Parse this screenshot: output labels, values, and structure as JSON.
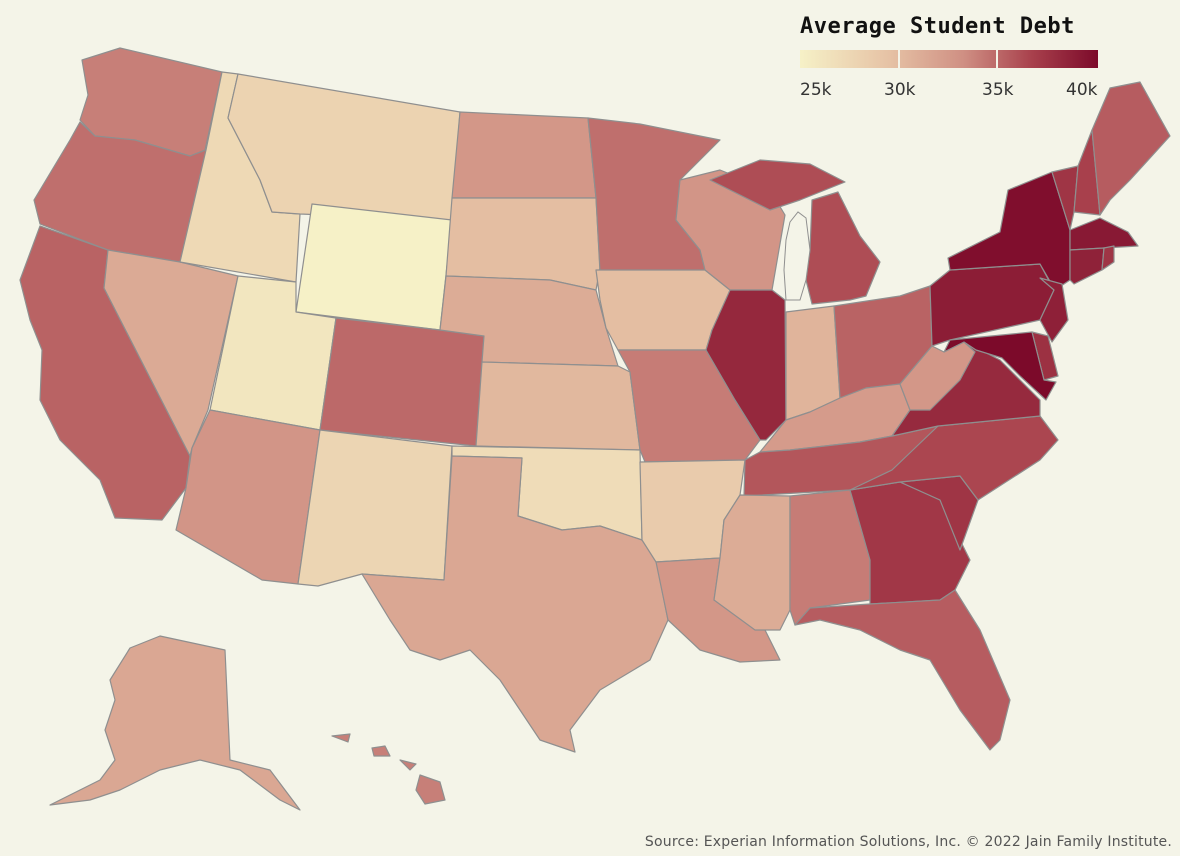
{
  "legend": {
    "title": "Average Student Debt",
    "ticks": [
      "25k",
      "30k",
      "35k",
      "40k"
    ]
  },
  "source": "Source: Experian Information Solutions, Inc. © 2022 Jain Family Institute.",
  "colors": {
    "background": "#f4f4e8",
    "border": "#8f8f8f",
    "scale": [
      "#f6f1c7",
      "#e6c2a5",
      "#cf8f83",
      "#a8404c",
      "#7c0a2a"
    ]
  },
  "states": [
    {
      "id": "WA",
      "level": 0.55
    },
    {
      "id": "OR",
      "level": 0.6
    },
    {
      "id": "CA",
      "level": 0.64
    },
    {
      "id": "NV",
      "level": 0.37
    },
    {
      "id": "ID",
      "level": 0.13
    },
    {
      "id": "MT",
      "level": 0.16
    },
    {
      "id": "WY",
      "level": 0.0
    },
    {
      "id": "UT",
      "level": 0.06
    },
    {
      "id": "AZ",
      "level": 0.47
    },
    {
      "id": "CO",
      "level": 0.62
    },
    {
      "id": "NM",
      "level": 0.15
    },
    {
      "id": "ND",
      "level": 0.46
    },
    {
      "id": "SD",
      "level": 0.27
    },
    {
      "id": "NE",
      "level": 0.36
    },
    {
      "id": "KS",
      "level": 0.3
    },
    {
      "id": "OK",
      "level": 0.11
    },
    {
      "id": "TX",
      "level": 0.38
    },
    {
      "id": "MN",
      "level": 0.6
    },
    {
      "id": "IA",
      "level": 0.27
    },
    {
      "id": "MO",
      "level": 0.56
    },
    {
      "id": "AR",
      "level": 0.2
    },
    {
      "id": "LA",
      "level": 0.46
    },
    {
      "id": "WI",
      "level": 0.47
    },
    {
      "id": "IL",
      "level": 0.86
    },
    {
      "id": "MI",
      "level": 0.71
    },
    {
      "id": "IN",
      "level": 0.32
    },
    {
      "id": "OH",
      "level": 0.64
    },
    {
      "id": "KY",
      "level": 0.44
    },
    {
      "id": "TN",
      "level": 0.68
    },
    {
      "id": "MS",
      "level": 0.36
    },
    {
      "id": "AL",
      "level": 0.56
    },
    {
      "id": "GA",
      "level": 0.79
    },
    {
      "id": "FL",
      "level": 0.66
    },
    {
      "id": "SC",
      "level": 0.8
    },
    {
      "id": "NC",
      "level": 0.73
    },
    {
      "id": "VA",
      "level": 0.85
    },
    {
      "id": "WV",
      "level": 0.46
    },
    {
      "id": "PA",
      "level": 0.91
    },
    {
      "id": "NY",
      "level": 0.98
    },
    {
      "id": "VT",
      "level": 0.8
    },
    {
      "id": "NH",
      "level": 0.75
    },
    {
      "id": "ME",
      "level": 0.66
    },
    {
      "id": "MA",
      "level": 0.93
    },
    {
      "id": "CT",
      "level": 0.89
    },
    {
      "id": "RI",
      "level": 0.8
    },
    {
      "id": "NJ",
      "level": 0.9
    },
    {
      "id": "DE",
      "level": 0.82
    },
    {
      "id": "MD",
      "level": 1.0
    },
    {
      "id": "AK",
      "level": 0.38
    },
    {
      "id": "HI",
      "level": 0.55
    }
  ]
}
